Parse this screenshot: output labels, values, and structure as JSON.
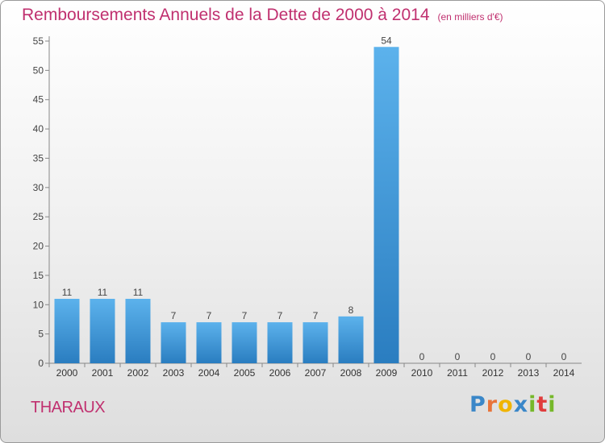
{
  "title": "Remboursements Annuels de la Dette de 2000 à 2014",
  "title_unit": "(en milliers d'€)",
  "commune": "THARAUX",
  "logo": {
    "text": "Proxiti",
    "letters": [
      "P",
      "r",
      "o",
      "x",
      "i",
      "t",
      "i"
    ]
  },
  "colors": {
    "title": "#c0306f",
    "bar_top": "#5cb2ec",
    "bar_bottom": "#2a7dc0"
  },
  "chart_data": {
    "type": "bar",
    "title": "Remboursements Annuels de la Dette de 2000 à 2014",
    "categories": [
      "2000",
      "2001",
      "2002",
      "2003",
      "2004",
      "2005",
      "2006",
      "2007",
      "2008",
      "2009",
      "2010",
      "2011",
      "2012",
      "2013",
      "2014"
    ],
    "values": [
      11,
      11,
      11,
      7,
      7,
      7,
      7,
      7,
      8,
      54,
      0,
      0,
      0,
      0,
      0
    ],
    "ylim": [
      0,
      55
    ],
    "yticks": [
      0,
      5,
      10,
      15,
      20,
      25,
      30,
      35,
      40,
      45,
      50,
      55
    ],
    "grid": false,
    "legend": "none"
  }
}
